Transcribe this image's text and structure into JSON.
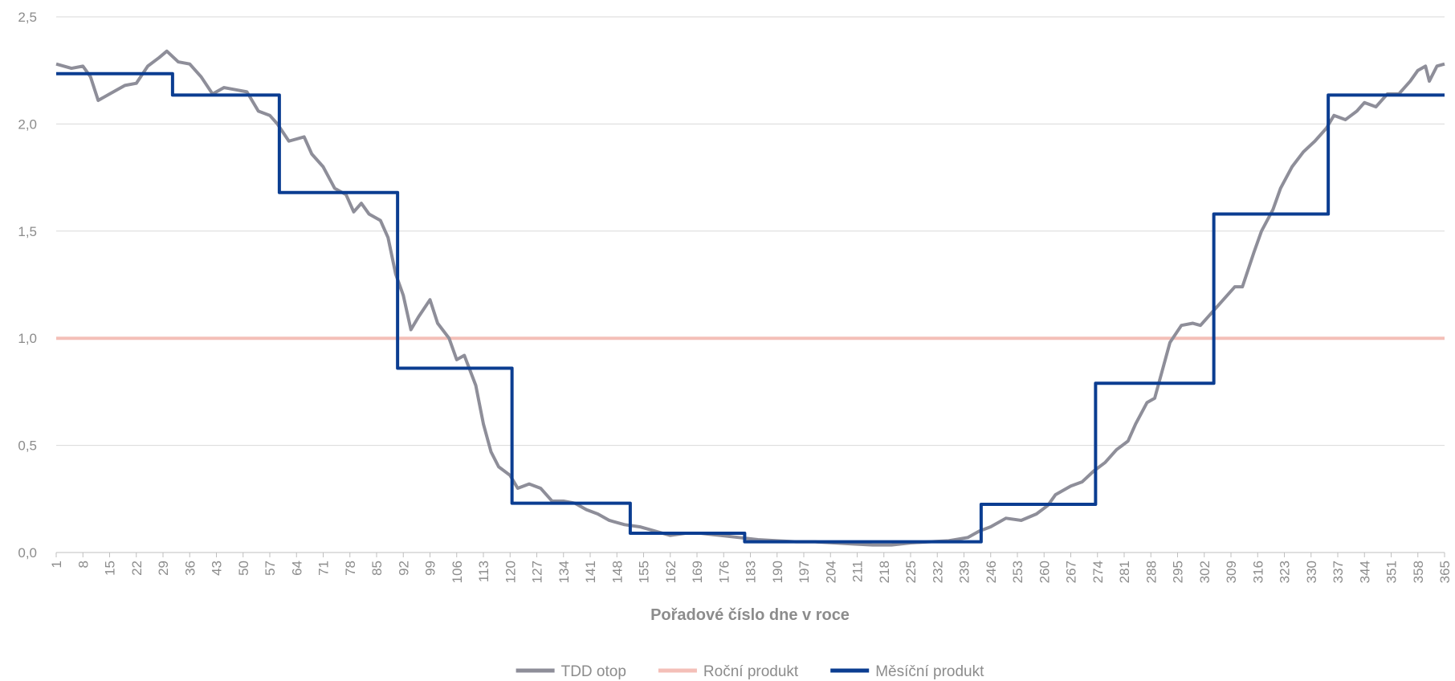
{
  "chart_data": {
    "type": "line",
    "x_label": "Pořadové číslo dne v roce",
    "xlim": [
      1,
      365
    ],
    "xticks": [
      1,
      8,
      15,
      22,
      29,
      36,
      43,
      50,
      57,
      64,
      71,
      78,
      85,
      92,
      99,
      106,
      113,
      120,
      127,
      134,
      141,
      148,
      155,
      162,
      169,
      176,
      183,
      190,
      197,
      204,
      211,
      218,
      225,
      232,
      239,
      246,
      253,
      260,
      267,
      274,
      281,
      288,
      295,
      302,
      309,
      316,
      323,
      330,
      337,
      344,
      351,
      358,
      365
    ],
    "ylim": [
      0,
      2.5
    ],
    "yticks": [
      {
        "value": 0,
        "label": "0,0"
      },
      {
        "value": 0.5,
        "label": "0,5"
      },
      {
        "value": 1,
        "label": "1,0"
      },
      {
        "value": 1.5,
        "label": "1,5"
      },
      {
        "value": 2,
        "label": "2,0"
      },
      {
        "value": 2.5,
        "label": "2,5"
      }
    ],
    "grid": true,
    "legend": "bottom",
    "series": [
      {
        "name": "TDD otop",
        "color": "#8e8e99",
        "x": [
          1,
          5,
          8,
          10,
          12,
          15,
          19,
          22,
          25,
          28,
          30,
          33,
          36,
          39,
          42,
          45,
          48,
          51,
          54,
          57,
          59,
          62,
          66,
          68,
          71,
          74,
          77,
          79,
          81,
          83,
          86,
          88,
          90,
          92,
          94,
          96,
          99,
          101,
          104,
          106,
          108,
          111,
          113,
          115,
          117,
          120,
          122,
          125,
          128,
          131,
          134,
          137,
          140,
          143,
          146,
          150,
          154,
          158,
          162,
          166,
          170,
          175,
          180,
          185,
          190,
          195,
          200,
          205,
          210,
          215,
          220,
          225,
          230,
          235,
          240,
          243,
          246,
          250,
          254,
          258,
          261,
          263,
          267,
          270,
          273,
          276,
          279,
          282,
          284,
          287,
          289,
          291,
          293,
          296,
          299,
          301,
          304,
          307,
          310,
          312,
          315,
          317,
          320,
          322,
          325,
          328,
          331,
          334,
          336,
          339,
          342,
          344,
          347,
          350,
          353,
          356,
          358,
          360,
          361,
          363,
          365
        ],
        "values": [
          2.28,
          2.26,
          2.27,
          2.22,
          2.11,
          2.14,
          2.18,
          2.19,
          2.27,
          2.31,
          2.34,
          2.29,
          2.28,
          2.22,
          2.14,
          2.17,
          2.16,
          2.15,
          2.06,
          2.04,
          2.0,
          1.92,
          1.94,
          1.86,
          1.8,
          1.7,
          1.67,
          1.59,
          1.63,
          1.58,
          1.55,
          1.47,
          1.3,
          1.2,
          1.04,
          1.1,
          1.18,
          1.07,
          1.0,
          0.9,
          0.92,
          0.78,
          0.6,
          0.47,
          0.4,
          0.36,
          0.3,
          0.32,
          0.3,
          0.24,
          0.24,
          0.23,
          0.2,
          0.18,
          0.15,
          0.13,
          0.12,
          0.1,
          0.08,
          0.09,
          0.09,
          0.08,
          0.07,
          0.06,
          0.055,
          0.05,
          0.05,
          0.045,
          0.04,
          0.035,
          0.035,
          0.045,
          0.05,
          0.055,
          0.07,
          0.1,
          0.12,
          0.16,
          0.15,
          0.18,
          0.22,
          0.27,
          0.31,
          0.33,
          0.38,
          0.42,
          0.48,
          0.52,
          0.6,
          0.7,
          0.72,
          0.85,
          0.98,
          1.06,
          1.07,
          1.06,
          1.12,
          1.18,
          1.24,
          1.24,
          1.4,
          1.5,
          1.6,
          1.7,
          1.8,
          1.87,
          1.92,
          1.98,
          2.04,
          2.02,
          2.06,
          2.1,
          2.08,
          2.14,
          2.14,
          2.2,
          2.25,
          2.27,
          2.2,
          2.27,
          2.28
        ]
      },
      {
        "name": "Roční produkt",
        "color": "#f4bfb8",
        "x": [
          1,
          365
        ],
        "values": [
          1,
          1
        ]
      },
      {
        "name": "Měsíční produkt",
        "color": "#0b3d91",
        "x": [
          1,
          31.5,
          31.5,
          59.5,
          59.5,
          90.5,
          90.5,
          120.5,
          120.5,
          151.5,
          151.5,
          181.5,
          181.5,
          212.5,
          212.5,
          243.5,
          243.5,
          273.5,
          273.5,
          304.5,
          304.5,
          334.5,
          334.5,
          365
        ],
        "values": [
          2.235,
          2.235,
          2.135,
          2.135,
          1.68,
          1.68,
          0.86,
          0.86,
          0.23,
          0.23,
          0.09,
          0.09,
          0.05,
          0.05,
          0.05,
          0.05,
          0.225,
          0.225,
          0.79,
          0.79,
          1.58,
          1.58,
          2.135,
          2.135
        ]
      }
    ]
  }
}
